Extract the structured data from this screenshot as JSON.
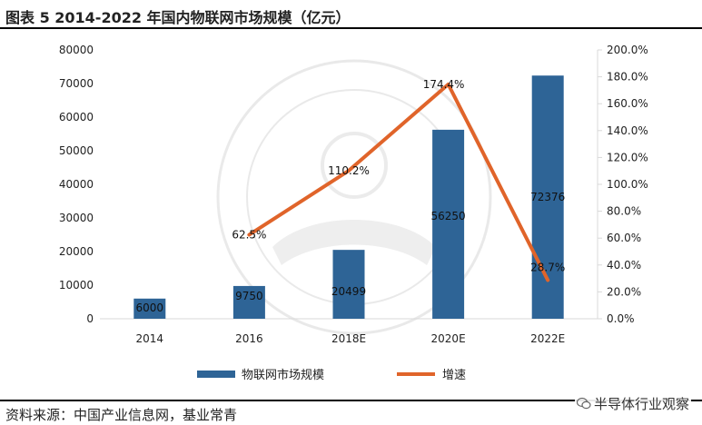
{
  "header": {
    "title": "图表 5  2014-2022 年国内物联网市场规模（亿元）"
  },
  "footer": {
    "source": "资料来源：中国产业信息网，基业常青",
    "watermark": "半导体行业观察"
  },
  "colors": {
    "bar": "#2e6496",
    "line": "#e0642a",
    "axis": "#d9d9d9"
  },
  "chart_data": {
    "type": "bar",
    "categories": [
      "2014",
      "2016",
      "2018E",
      "2020E",
      "2022E"
    ],
    "series": [
      {
        "name": "物联网市场规模",
        "type": "bar",
        "axis": "left",
        "values": [
          6000,
          9750,
          20499,
          56250,
          72376
        ],
        "labels": [
          "6000",
          "9750",
          "20499",
          "56250",
          "72376"
        ]
      },
      {
        "name": "增速",
        "type": "line",
        "axis": "right",
        "values": [
          null,
          62.5,
          110.2,
          174.4,
          28.7
        ],
        "labels": [
          "",
          "62.5%",
          "110.2%",
          "174.4%",
          "28.7%"
        ]
      }
    ],
    "left_axis": {
      "ylim": [
        0,
        80000
      ],
      "ticks": [
        0,
        10000,
        20000,
        30000,
        40000,
        50000,
        60000,
        70000,
        80000
      ],
      "tick_labels": [
        "0",
        "10000",
        "20000",
        "30000",
        "40000",
        "50000",
        "60000",
        "70000",
        "80000"
      ]
    },
    "right_axis": {
      "ylim": [
        0,
        200
      ],
      "ticks": [
        0,
        20,
        40,
        60,
        80,
        100,
        120,
        140,
        160,
        180,
        200
      ],
      "tick_labels": [
        "0.0%",
        "20.0%",
        "40.0%",
        "60.0%",
        "80.0%",
        "100.0%",
        "120.0%",
        "140.0%",
        "160.0%",
        "180.0%",
        "200.0%"
      ]
    },
    "grid": false,
    "legend": "bottom"
  }
}
